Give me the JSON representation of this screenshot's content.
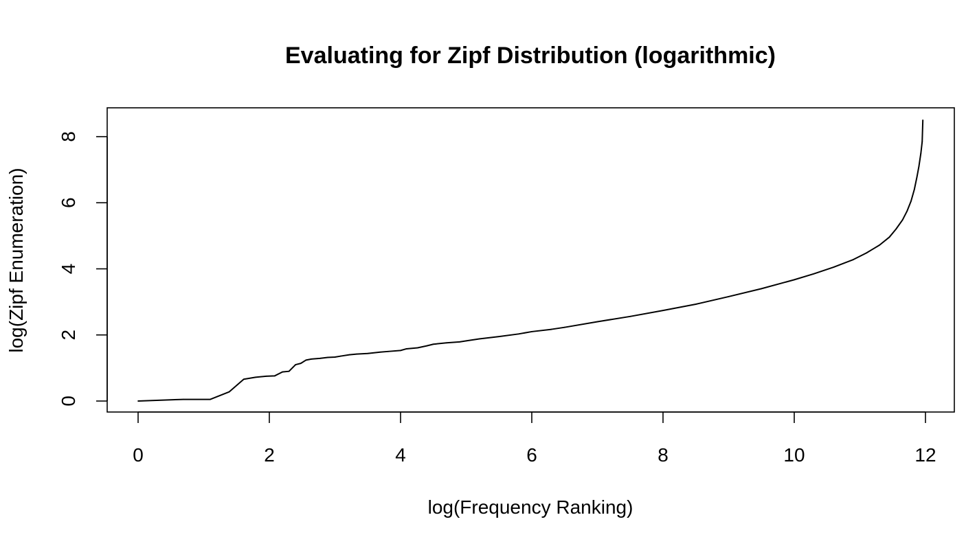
{
  "chart_data": {
    "type": "line",
    "title": "Evaluating for Zipf Distribution (logarithmic)",
    "xlabel": "log(Frequency Ranking)",
    "ylabel": "log(Zipf Enumeration)",
    "xlim": [
      0,
      12
    ],
    "ylim": [
      0,
      8.5
    ],
    "x_ticks": [
      0,
      2,
      4,
      6,
      8,
      10,
      12
    ],
    "y_ticks": [
      0,
      2,
      4,
      6,
      8
    ],
    "grid": false,
    "line_color": "#000000",
    "series": [
      {
        "points": [
          [
            0.0,
            0.0
          ],
          [
            0.69,
            0.05
          ],
          [
            1.1,
            0.05
          ],
          [
            1.39,
            0.28
          ],
          [
            1.61,
            0.66
          ],
          [
            1.79,
            0.72
          ],
          [
            1.95,
            0.75
          ],
          [
            2.08,
            0.76
          ],
          [
            2.2,
            0.88
          ],
          [
            2.3,
            0.9
          ],
          [
            2.4,
            1.1
          ],
          [
            2.48,
            1.14
          ],
          [
            2.56,
            1.24
          ],
          [
            2.64,
            1.27
          ],
          [
            2.77,
            1.29
          ],
          [
            2.89,
            1.32
          ],
          [
            3.0,
            1.33
          ],
          [
            3.09,
            1.36
          ],
          [
            3.22,
            1.4
          ],
          [
            3.33,
            1.42
          ],
          [
            3.5,
            1.44
          ],
          [
            3.69,
            1.48
          ],
          [
            3.81,
            1.5
          ],
          [
            4.0,
            1.53
          ],
          [
            4.09,
            1.58
          ],
          [
            4.26,
            1.61
          ],
          [
            4.4,
            1.67
          ],
          [
            4.5,
            1.72
          ],
          [
            4.7,
            1.76
          ],
          [
            4.9,
            1.79
          ],
          [
            5.0,
            1.82
          ],
          [
            5.2,
            1.88
          ],
          [
            5.5,
            1.95
          ],
          [
            5.8,
            2.03
          ],
          [
            6.0,
            2.1
          ],
          [
            6.3,
            2.17
          ],
          [
            6.5,
            2.23
          ],
          [
            7.0,
            2.4
          ],
          [
            7.5,
            2.56
          ],
          [
            8.0,
            2.74
          ],
          [
            8.5,
            2.93
          ],
          [
            9.0,
            3.16
          ],
          [
            9.5,
            3.4
          ],
          [
            10.0,
            3.67
          ],
          [
            10.3,
            3.85
          ],
          [
            10.6,
            4.05
          ],
          [
            10.9,
            4.28
          ],
          [
            11.1,
            4.48
          ],
          [
            11.3,
            4.72
          ],
          [
            11.45,
            4.96
          ],
          [
            11.55,
            5.2
          ],
          [
            11.65,
            5.48
          ],
          [
            11.72,
            5.75
          ],
          [
            11.78,
            6.05
          ],
          [
            11.83,
            6.4
          ],
          [
            11.87,
            6.78
          ],
          [
            11.9,
            7.1
          ],
          [
            11.93,
            7.5
          ],
          [
            11.95,
            7.85
          ],
          [
            11.96,
            8.5
          ]
        ]
      }
    ]
  }
}
